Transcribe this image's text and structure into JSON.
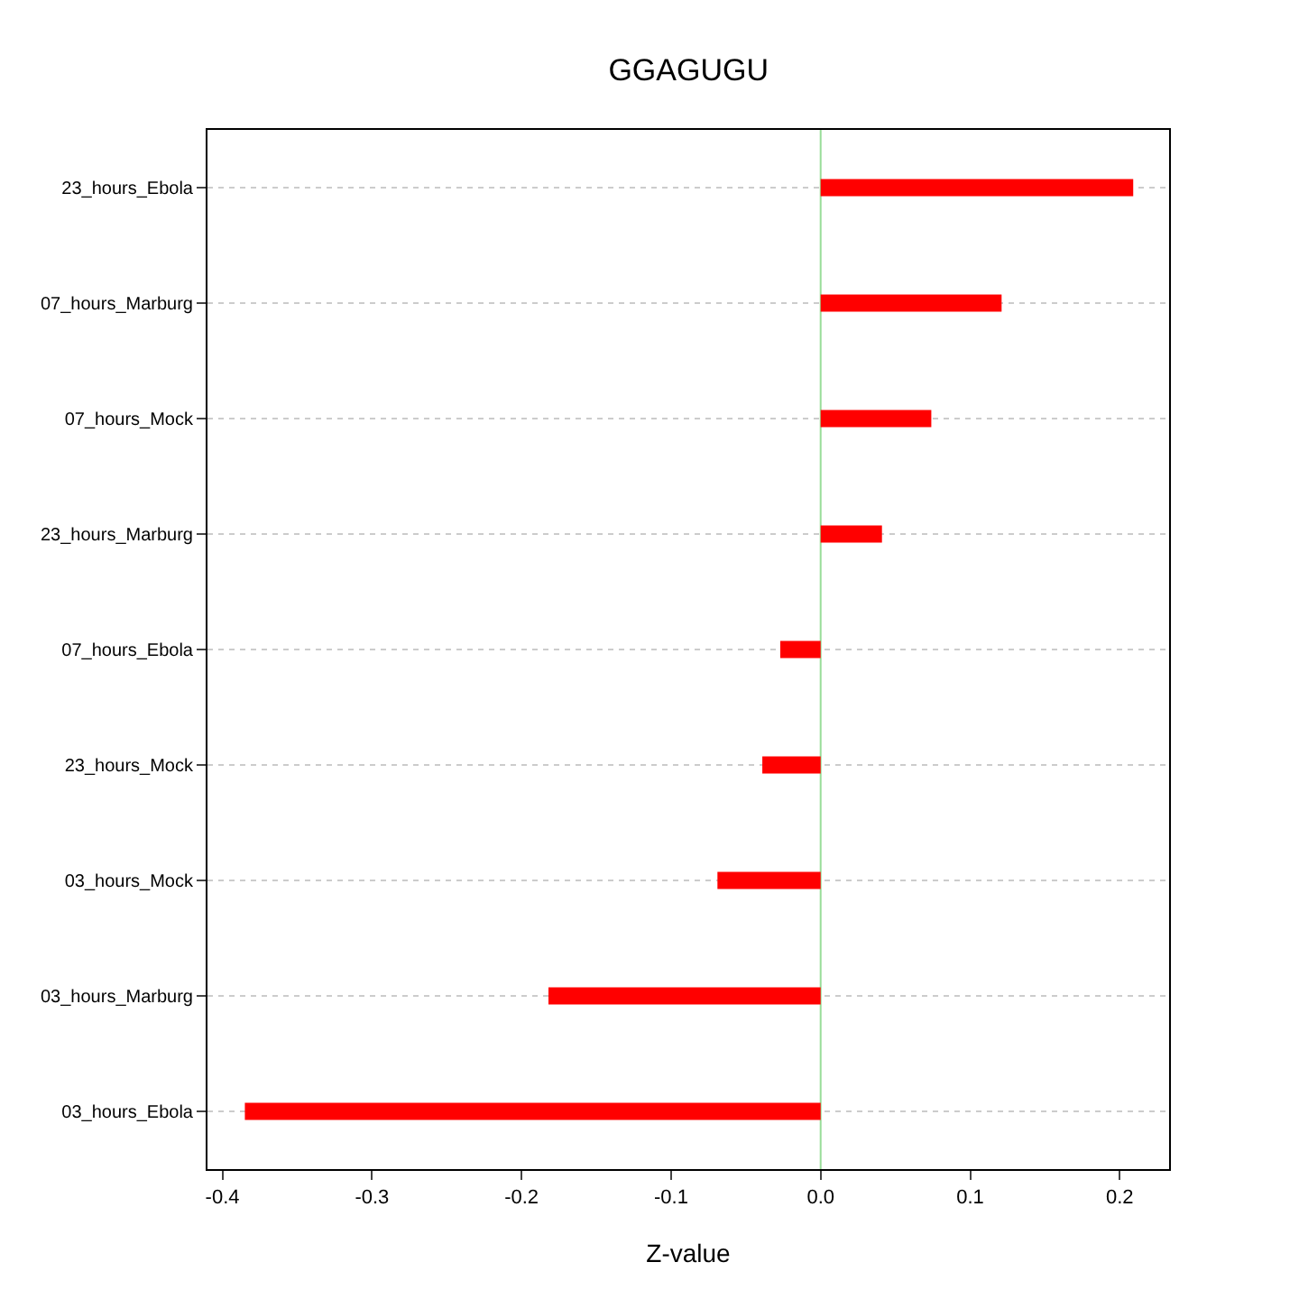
{
  "chart_data": {
    "type": "bar",
    "title": "GGAGUGU",
    "xlabel": "Z-value",
    "orientation": "horizontal",
    "categories": [
      "23_hours_Ebola",
      "07_hours_Marburg",
      "07_hours_Mock",
      "23_hours_Marburg",
      "07_hours_Ebola",
      "23_hours_Mock",
      "03_hours_Mock",
      "03_hours_Marburg",
      "03_hours_Ebola"
    ],
    "values": [
      0.209,
      0.121,
      0.074,
      0.041,
      -0.027,
      -0.039,
      -0.069,
      -0.182,
      -0.385
    ],
    "color": "#ff0000",
    "xlim": [
      -0.41,
      0.233
    ],
    "xticks": [
      -0.4,
      -0.3,
      -0.2,
      -0.1,
      {
        "value": 0,
        "label": "0.0"
      },
      0.1,
      0.2
    ],
    "ref_lines": [
      {
        "axis": "x",
        "value": 0,
        "color": "#99dd99"
      }
    ],
    "grid": "y"
  }
}
